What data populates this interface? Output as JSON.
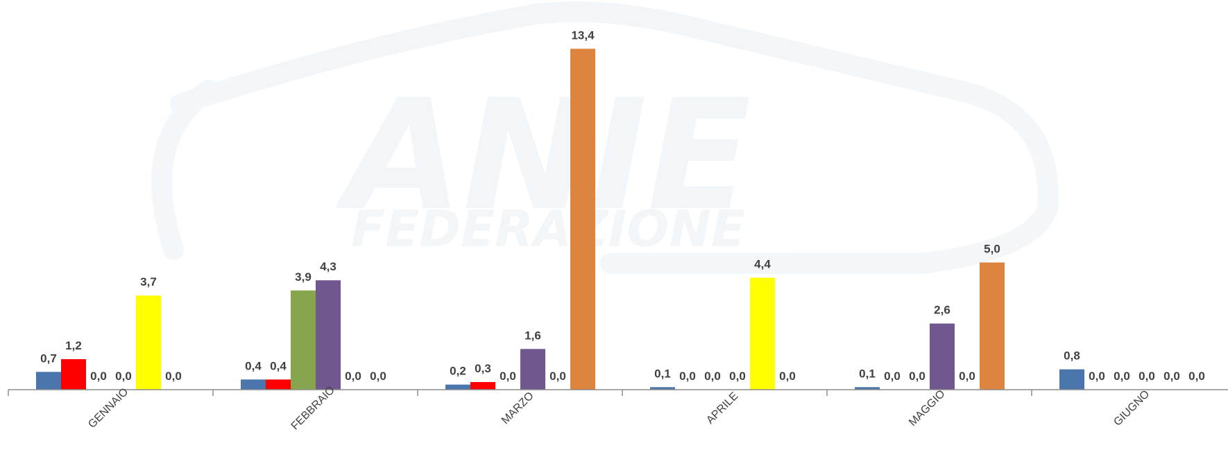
{
  "watermark": {
    "logo_text": "ANIE",
    "sub_text": "FEDERAZIONE"
  },
  "chart_data": {
    "type": "bar",
    "categories": [
      "GENNAIO",
      "FEBBRAIO",
      "MARZO",
      "APRILE",
      "MAGGIO",
      "GIUGNO"
    ],
    "series": [
      {
        "color": "#4a76ad",
        "values": [
          0.7,
          0.4,
          0.2,
          0.1,
          0.1,
          0.8
        ]
      },
      {
        "color": "#ff0000",
        "values": [
          1.2,
          0.4,
          0.3,
          0.0,
          0.0,
          0.0
        ]
      },
      {
        "color": "#86a54c",
        "values": [
          0.0,
          3.9,
          0.0,
          0.0,
          0.0,
          0.0
        ]
      },
      {
        "color": "#70578f",
        "values": [
          0.0,
          4.3,
          1.6,
          0.0,
          2.6,
          0.0
        ]
      },
      {
        "color": "#ffff00",
        "values": [
          3.7,
          0.0,
          0.0,
          4.4,
          0.0,
          0.0
        ]
      },
      {
        "color": "#dd843f",
        "values": [
          0.0,
          0.0,
          13.4,
          0.0,
          5.0,
          0.0
        ]
      }
    ],
    "ylim": [
      0,
      14.5
    ],
    "grid": false,
    "legend": "none",
    "value_format": "comma-decimal-1"
  }
}
